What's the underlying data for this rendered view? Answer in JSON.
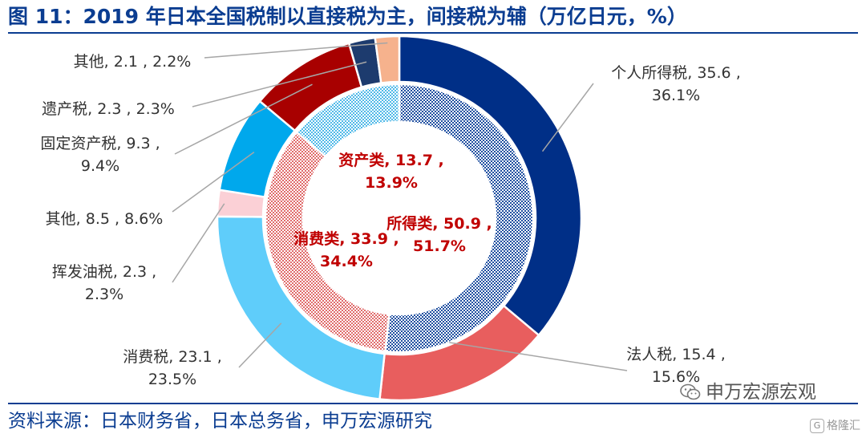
{
  "title": "图 11：2019 年日本全国税制以直接税为主，间接税为辅（万亿日元，%）",
  "source": "资料来源：日本财务省，日本总务省，申万宏源研究",
  "watermark": {
    "text": "申万宏源宏观",
    "icon": "wechat-icon"
  },
  "badge": {
    "text": "格隆汇",
    "icon": "gelonghui-logo-icon"
  },
  "chart_data": {
    "type": "pie",
    "subtype": "double-donut",
    "outer_ring": {
      "categories": [
        "个人所得税",
        "法人税",
        "消费税",
        "挥发油税",
        "其他",
        "固定资产税",
        "遗产税",
        "其他"
      ],
      "values": [
        35.6,
        15.4,
        23.1,
        2.3,
        8.5,
        9.3,
        2.3,
        2.1
      ],
      "percent": [
        36.1,
        15.6,
        23.5,
        2.3,
        8.6,
        9.4,
        2.3,
        2.2
      ],
      "colors": [
        "#002f87",
        "#e85e5e",
        "#5fcdfa",
        "#fbd0d6",
        "#00a8ec",
        "#a80000",
        "#1d3b6e",
        "#f6b28d"
      ],
      "labels": [
        [
          "个人所得税, 35.6 ,",
          "36.1%"
        ],
        [
          "法人税, 15.4 ,",
          "15.6%"
        ],
        [
          "消费税, 23.1 ,",
          "23.5%"
        ],
        [
          "挥发油税, 2.3 ,",
          "2.3%"
        ],
        [
          "其他, 8.5 , 8.6%"
        ],
        [
          "固定资产税, 9.3 ,",
          "9.4%"
        ],
        [
          "遗产税, 2.3 , 2.3%"
        ],
        [
          "其他, 2.1 , 2.2%"
        ]
      ]
    },
    "inner_ring": {
      "categories": [
        "所得类",
        "消费类",
        "资产类"
      ],
      "values": [
        50.9,
        33.9,
        13.7
      ],
      "percent": [
        51.7,
        34.4,
        13.9
      ],
      "colors": [
        "#1f4fa0",
        "#e06b6b",
        "#4fb9e8"
      ],
      "pattern": "checkered",
      "labels": [
        [
          "所得类, 50.9 ,",
          "51.7%"
        ],
        [
          "消费类, 33.9 ,",
          "34.4%"
        ],
        [
          "资产类, 13.7 ,",
          "13.9%"
        ]
      ]
    }
  }
}
